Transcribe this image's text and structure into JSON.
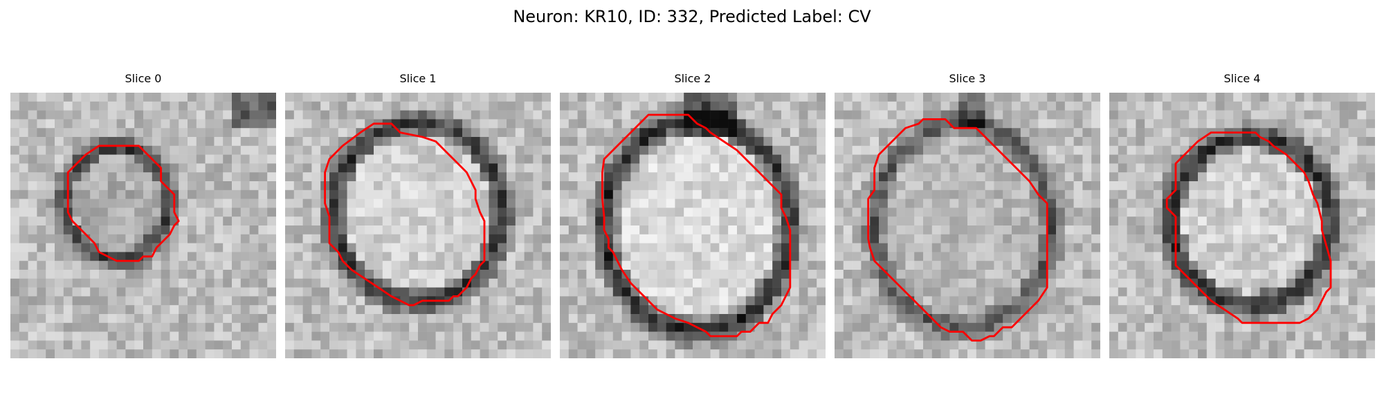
{
  "figure": {
    "title": "Neuron: KR10, ID: 332, Predicted Label: CV"
  },
  "panels": [
    {
      "title": "Slice 0",
      "outline_color": "#ff0000"
    },
    {
      "title": "Slice 1",
      "outline_color": "#ff0000"
    },
    {
      "title": "Slice 2",
      "outline_color": "#ff0000"
    },
    {
      "title": "Slice 3",
      "outline_color": "#ff0000"
    },
    {
      "title": "Slice 4",
      "outline_color": "#ff0000"
    }
  ]
}
